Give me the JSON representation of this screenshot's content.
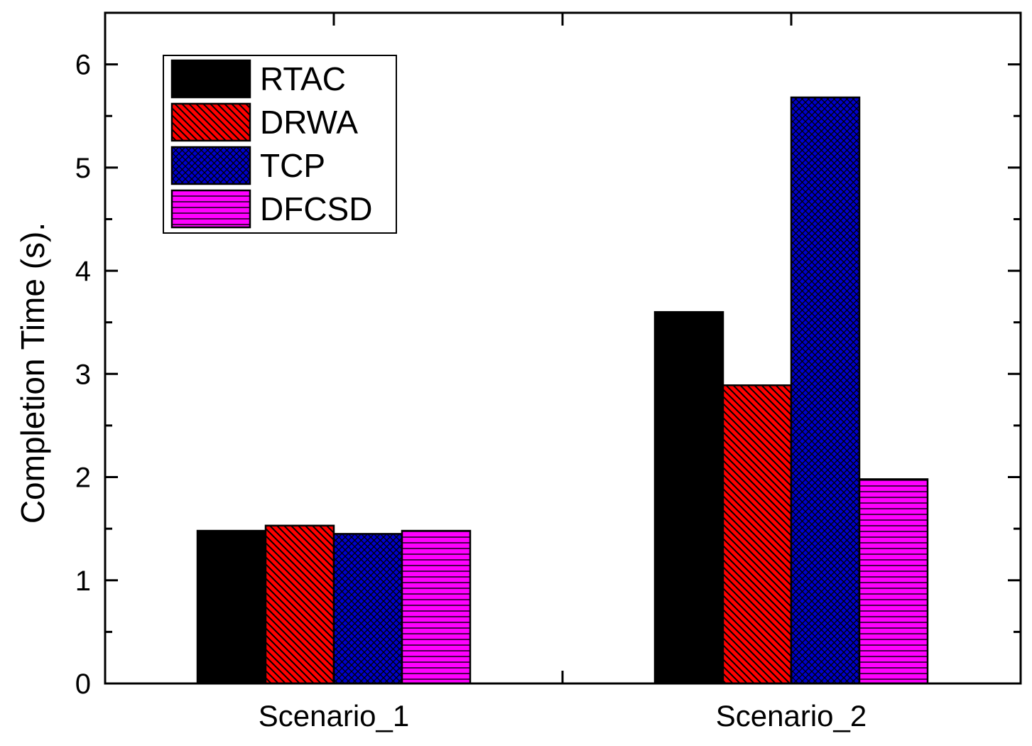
{
  "chart_data": {
    "type": "bar",
    "title": "",
    "xlabel": "",
    "ylabel": "Completion Time (s).",
    "ylim": [
      0,
      6.5
    ],
    "yticks": [
      0,
      1,
      2,
      3,
      4,
      5,
      6
    ],
    "categories": [
      "Scenario_1",
      "Scenario_2"
    ],
    "series": [
      {
        "name": "RTAC",
        "values": [
          1.48,
          3.6
        ],
        "color": "#000000",
        "pattern": "solid"
      },
      {
        "name": "DRWA",
        "values": [
          1.53,
          2.89
        ],
        "color": "#ff0000",
        "pattern": "diagonal"
      },
      {
        "name": "TCP",
        "values": [
          1.45,
          5.68
        ],
        "color": "#0000cc",
        "pattern": "crosshatch"
      },
      {
        "name": "DFCSD",
        "values": [
          1.48,
          1.98
        ],
        "color": "#ff00ff",
        "pattern": "horizontal"
      }
    ],
    "legend_position": "top-left"
  }
}
